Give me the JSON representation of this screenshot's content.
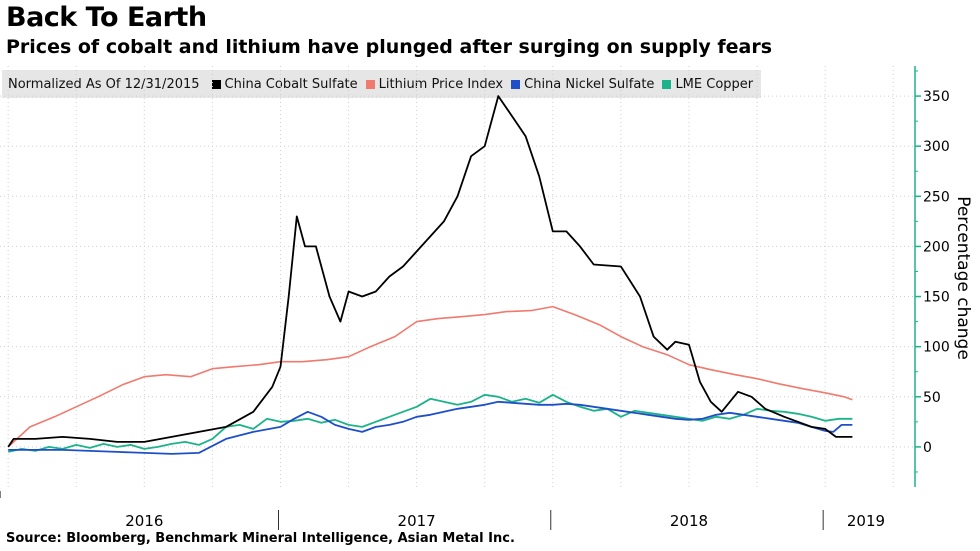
{
  "title": "Back To Earth",
  "subtitle": "Prices of cobalt and lithium have plunged after surging on supply fears",
  "source": "Source: Bloomberg, Benchmark Mineral Intelligence, Asian Metal Inc.",
  "legend": {
    "note": "Normalized As Of 12/31/2015",
    "items": [
      {
        "label": "China Cobalt Sulfate",
        "color": "#000000"
      },
      {
        "label": "Lithium Price Index",
        "color": "#f07a6e"
      },
      {
        "label": "China Nickel Sulfate",
        "color": "#1f4fc8"
      },
      {
        "label": "LME Copper",
        "color": "#1db38a"
      }
    ]
  },
  "chart_data": {
    "type": "line",
    "ylabel": "Percentage change",
    "ylim": [
      -40,
      380
    ],
    "yticks": [
      0,
      50,
      100,
      150,
      200,
      250,
      300,
      350
    ],
    "x_year_labels": [
      "2016",
      "2017",
      "2018",
      "2019"
    ],
    "xlim": [
      2016.0,
      2019.37
    ],
    "grid": true,
    "y_axis_position": "right",
    "series": [
      {
        "name": "China Cobalt Sulfate",
        "color": "#000000",
        "points": [
          [
            2016.0,
            0
          ],
          [
            2016.02,
            8
          ],
          [
            2016.1,
            8
          ],
          [
            2016.2,
            10
          ],
          [
            2016.3,
            8
          ],
          [
            2016.4,
            5
          ],
          [
            2016.5,
            5
          ],
          [
            2016.6,
            10
          ],
          [
            2016.7,
            15
          ],
          [
            2016.8,
            20
          ],
          [
            2016.9,
            35
          ],
          [
            2016.97,
            60
          ],
          [
            2017.0,
            80
          ],
          [
            2017.03,
            150
          ],
          [
            2017.06,
            230
          ],
          [
            2017.09,
            200
          ],
          [
            2017.13,
            200
          ],
          [
            2017.18,
            150
          ],
          [
            2017.22,
            125
          ],
          [
            2017.25,
            155
          ],
          [
            2017.3,
            150
          ],
          [
            2017.35,
            155
          ],
          [
            2017.4,
            170
          ],
          [
            2017.45,
            180
          ],
          [
            2017.5,
            195
          ],
          [
            2017.55,
            210
          ],
          [
            2017.6,
            225
          ],
          [
            2017.65,
            250
          ],
          [
            2017.7,
            290
          ],
          [
            2017.75,
            300
          ],
          [
            2017.8,
            350
          ],
          [
            2017.85,
            330
          ],
          [
            2017.9,
            310
          ],
          [
            2017.95,
            270
          ],
          [
            2018.0,
            215
          ],
          [
            2018.05,
            215
          ],
          [
            2018.1,
            200
          ],
          [
            2018.15,
            182
          ],
          [
            2018.25,
            180
          ],
          [
            2018.32,
            150
          ],
          [
            2018.37,
            110
          ],
          [
            2018.42,
            97
          ],
          [
            2018.45,
            105
          ],
          [
            2018.5,
            102
          ],
          [
            2018.54,
            65
          ],
          [
            2018.58,
            45
          ],
          [
            2018.62,
            35
          ],
          [
            2018.68,
            55
          ],
          [
            2018.73,
            50
          ],
          [
            2018.78,
            38
          ],
          [
            2018.85,
            30
          ],
          [
            2018.9,
            25
          ],
          [
            2018.95,
            20
          ],
          [
            2019.0,
            18
          ],
          [
            2019.04,
            10
          ],
          [
            2019.08,
            10
          ],
          [
            2019.1,
            10
          ]
        ]
      },
      {
        "name": "Lithium Price Index",
        "color": "#f07a6e",
        "points": [
          [
            2016.0,
            0
          ],
          [
            2016.08,
            20
          ],
          [
            2016.17,
            30
          ],
          [
            2016.25,
            40
          ],
          [
            2016.33,
            50
          ],
          [
            2016.42,
            62
          ],
          [
            2016.5,
            70
          ],
          [
            2016.58,
            72
          ],
          [
            2016.67,
            70
          ],
          [
            2016.75,
            78
          ],
          [
            2016.83,
            80
          ],
          [
            2016.92,
            82
          ],
          [
            2017.0,
            85
          ],
          [
            2017.08,
            85
          ],
          [
            2017.17,
            87
          ],
          [
            2017.25,
            90
          ],
          [
            2017.33,
            100
          ],
          [
            2017.42,
            110
          ],
          [
            2017.5,
            125
          ],
          [
            2017.58,
            128
          ],
          [
            2017.67,
            130
          ],
          [
            2017.75,
            132
          ],
          [
            2017.83,
            135
          ],
          [
            2017.92,
            136
          ],
          [
            2018.0,
            140
          ],
          [
            2018.08,
            132
          ],
          [
            2018.17,
            122
          ],
          [
            2018.25,
            110
          ],
          [
            2018.33,
            100
          ],
          [
            2018.42,
            92
          ],
          [
            2018.5,
            82
          ],
          [
            2018.58,
            77
          ],
          [
            2018.67,
            72
          ],
          [
            2018.75,
            68
          ],
          [
            2018.83,
            63
          ],
          [
            2018.92,
            58
          ],
          [
            2019.0,
            54
          ],
          [
            2019.07,
            50
          ],
          [
            2019.1,
            47
          ]
        ]
      },
      {
        "name": "China Nickel Sulfate",
        "color": "#1f4fc8",
        "points": [
          [
            2016.0,
            -3
          ],
          [
            2016.1,
            -3
          ],
          [
            2016.2,
            -3
          ],
          [
            2016.3,
            -4
          ],
          [
            2016.4,
            -5
          ],
          [
            2016.5,
            -6
          ],
          [
            2016.6,
            -7
          ],
          [
            2016.7,
            -6
          ],
          [
            2016.8,
            8
          ],
          [
            2016.9,
            15
          ],
          [
            2017.0,
            20
          ],
          [
            2017.05,
            28
          ],
          [
            2017.1,
            35
          ],
          [
            2017.15,
            30
          ],
          [
            2017.2,
            22
          ],
          [
            2017.25,
            18
          ],
          [
            2017.3,
            15
          ],
          [
            2017.35,
            20
          ],
          [
            2017.4,
            22
          ],
          [
            2017.45,
            25
          ],
          [
            2017.5,
            30
          ],
          [
            2017.55,
            32
          ],
          [
            2017.6,
            35
          ],
          [
            2017.65,
            38
          ],
          [
            2017.7,
            40
          ],
          [
            2017.75,
            42
          ],
          [
            2017.8,
            45
          ],
          [
            2017.85,
            44
          ],
          [
            2017.9,
            43
          ],
          [
            2017.95,
            42
          ],
          [
            2018.0,
            42
          ],
          [
            2018.05,
            43
          ],
          [
            2018.1,
            42
          ],
          [
            2018.15,
            40
          ],
          [
            2018.2,
            38
          ],
          [
            2018.25,
            36
          ],
          [
            2018.3,
            34
          ],
          [
            2018.35,
            32
          ],
          [
            2018.4,
            30
          ],
          [
            2018.45,
            28
          ],
          [
            2018.5,
            27
          ],
          [
            2018.55,
            28
          ],
          [
            2018.6,
            32
          ],
          [
            2018.65,
            34
          ],
          [
            2018.7,
            32
          ],
          [
            2018.75,
            30
          ],
          [
            2018.8,
            28
          ],
          [
            2018.85,
            26
          ],
          [
            2018.9,
            24
          ],
          [
            2018.95,
            20
          ],
          [
            2019.0,
            16
          ],
          [
            2019.03,
            15
          ],
          [
            2019.06,
            22
          ],
          [
            2019.1,
            22
          ]
        ]
      },
      {
        "name": "LME Copper",
        "color": "#1db38a",
        "points": [
          [
            2016.0,
            -5
          ],
          [
            2016.05,
            -2
          ],
          [
            2016.1,
            -4
          ],
          [
            2016.15,
            0
          ],
          [
            2016.2,
            -2
          ],
          [
            2016.25,
            2
          ],
          [
            2016.3,
            -1
          ],
          [
            2016.35,
            3
          ],
          [
            2016.4,
            0
          ],
          [
            2016.45,
            2
          ],
          [
            2016.5,
            -2
          ],
          [
            2016.55,
            0
          ],
          [
            2016.6,
            3
          ],
          [
            2016.65,
            5
          ],
          [
            2016.7,
            2
          ],
          [
            2016.75,
            8
          ],
          [
            2016.8,
            20
          ],
          [
            2016.85,
            22
          ],
          [
            2016.9,
            18
          ],
          [
            2016.95,
            28
          ],
          [
            2017.0,
            25
          ],
          [
            2017.05,
            26
          ],
          [
            2017.1,
            28
          ],
          [
            2017.15,
            24
          ],
          [
            2017.2,
            27
          ],
          [
            2017.25,
            22
          ],
          [
            2017.3,
            20
          ],
          [
            2017.35,
            25
          ],
          [
            2017.4,
            30
          ],
          [
            2017.45,
            35
          ],
          [
            2017.5,
            40
          ],
          [
            2017.55,
            48
          ],
          [
            2017.6,
            45
          ],
          [
            2017.65,
            42
          ],
          [
            2017.7,
            45
          ],
          [
            2017.75,
            52
          ],
          [
            2017.8,
            50
          ],
          [
            2017.85,
            45
          ],
          [
            2017.9,
            48
          ],
          [
            2017.95,
            44
          ],
          [
            2018.0,
            52
          ],
          [
            2018.05,
            45
          ],
          [
            2018.1,
            40
          ],
          [
            2018.15,
            36
          ],
          [
            2018.2,
            38
          ],
          [
            2018.25,
            30
          ],
          [
            2018.3,
            36
          ],
          [
            2018.35,
            34
          ],
          [
            2018.4,
            32
          ],
          [
            2018.45,
            30
          ],
          [
            2018.5,
            28
          ],
          [
            2018.55,
            26
          ],
          [
            2018.6,
            30
          ],
          [
            2018.65,
            28
          ],
          [
            2018.7,
            32
          ],
          [
            2018.75,
            38
          ],
          [
            2018.8,
            36
          ],
          [
            2018.85,
            35
          ],
          [
            2018.9,
            33
          ],
          [
            2018.95,
            30
          ],
          [
            2019.0,
            26
          ],
          [
            2019.05,
            28
          ],
          [
            2019.1,
            28
          ]
        ]
      }
    ]
  }
}
